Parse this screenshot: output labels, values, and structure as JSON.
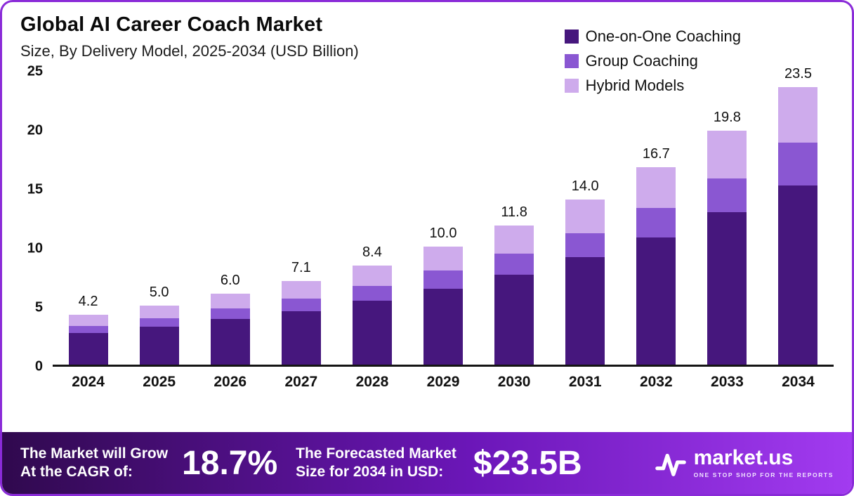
{
  "page": {
    "title": "Global AI Career Coach Market",
    "subtitle": "Size, By Delivery Model, 2025-2034 (USD Billion)"
  },
  "legend": [
    {
      "label": "One-on-One Coaching",
      "color": "#46177d"
    },
    {
      "label": "Group Coaching",
      "color": "#8a57d2"
    },
    {
      "label": "Hybrid Models",
      "color": "#ceabec"
    }
  ],
  "chart_data": {
    "type": "bar",
    "stacked": true,
    "title": "Global AI Career Coach Market Size, By Delivery Model, 2025-2034 (USD Billion)",
    "categories": [
      "2024",
      "2025",
      "2026",
      "2027",
      "2028",
      "2029",
      "2030",
      "2031",
      "2032",
      "2033",
      "2034"
    ],
    "series": [
      {
        "name": "One-on-One Coaching",
        "color": "#46177d",
        "values": [
          2.7,
          3.2,
          3.85,
          4.55,
          5.4,
          6.4,
          7.6,
          9.1,
          10.8,
          12.9,
          15.2
        ]
      },
      {
        "name": "Group Coaching",
        "color": "#8a57d2",
        "values": [
          0.6,
          0.75,
          0.9,
          1.05,
          1.25,
          1.55,
          1.8,
          2.05,
          2.5,
          2.9,
          3.6
        ]
      },
      {
        "name": "Hybrid Models",
        "color": "#ceabec",
        "values": [
          0.9,
          1.05,
          1.25,
          1.5,
          1.75,
          2.05,
          2.4,
          2.85,
          3.4,
          4.0,
          4.7
        ]
      }
    ],
    "totals": [
      4.2,
      5.0,
      6.0,
      7.1,
      8.4,
      10.0,
      11.8,
      14.0,
      16.7,
      19.8,
      23.5
    ],
    "total_labels": [
      "4.2",
      "5.0",
      "6.0",
      "7.1",
      "8.4",
      "10.0",
      "11.8",
      "14.0",
      "16.7",
      "19.8",
      "23.5"
    ],
    "xlabel": "",
    "ylabel": "",
    "ylim": [
      0,
      25
    ],
    "yticks": [
      0,
      5,
      10,
      15,
      20,
      25
    ],
    "grid": false,
    "legend_position": "top-right"
  },
  "footer": {
    "cagr_label_line1": "The Market will Grow",
    "cagr_label_line2": "At the CAGR of:",
    "cagr_value": "18.7%",
    "forecast_label_line1": "The Forecasted Market",
    "forecast_label_line2": "Size for 2034 in USD:",
    "forecast_value": "$23.5B",
    "brand": {
      "name": "market.us",
      "tagline": "ONE STOP SHOP FOR THE REPORTS"
    }
  }
}
